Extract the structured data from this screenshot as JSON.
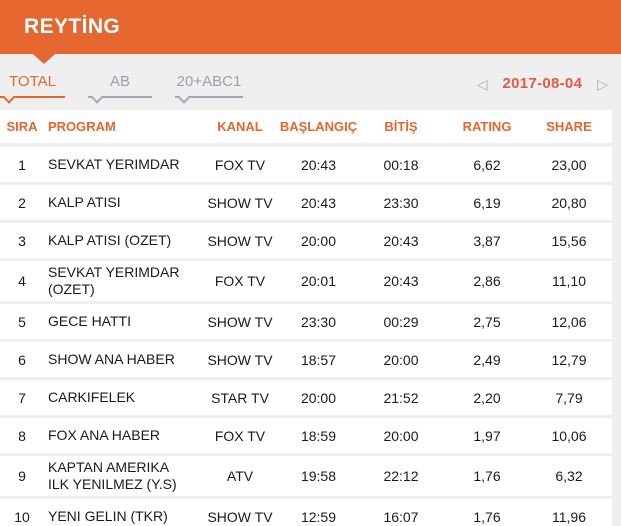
{
  "header": {
    "title": "REYTİNG"
  },
  "tabs": {
    "items": [
      {
        "label": "TOTAL",
        "active": true
      },
      {
        "label": "AB",
        "active": false
      },
      {
        "label": "20+ABC1",
        "active": false
      }
    ]
  },
  "date_nav": {
    "prev_icon": "◁",
    "date": "2017-08-04",
    "next_icon": "▷"
  },
  "table": {
    "columns": [
      "SIRA",
      "PROGRAM",
      "KANAL",
      "BAŞLANGIÇ",
      "BİTİŞ",
      "RATING",
      "SHARE"
    ],
    "column_keys": [
      "sira",
      "program",
      "kanal",
      "baslangic",
      "bitis",
      "rating",
      "share"
    ],
    "rows": [
      [
        "1",
        "SEVKAT YERIMDAR",
        "FOX TV",
        "20:43",
        "00:18",
        "6,62",
        "23,00"
      ],
      [
        "2",
        "KALP ATISI",
        "SHOW TV",
        "20:43",
        "23:30",
        "6,19",
        "20,80"
      ],
      [
        "3",
        "KALP ATISI (OZET)",
        "SHOW TV",
        "20:00",
        "20:43",
        "3,87",
        "15,56"
      ],
      [
        "4",
        "SEVKAT YERIMDAR (OZET)",
        "FOX TV",
        "20:01",
        "20:43",
        "2,86",
        "11,10"
      ],
      [
        "5",
        "GECE HATTI",
        "SHOW TV",
        "23:30",
        "00:29",
        "2,75",
        "12,06"
      ],
      [
        "6",
        "SHOW ANA HABER",
        "SHOW TV",
        "18:57",
        "20:00",
        "2,49",
        "12,79"
      ],
      [
        "7",
        "CARKIFELEK",
        "STAR TV",
        "20:00",
        "21:52",
        "2,20",
        "7,79"
      ],
      [
        "8",
        "FOX ANA HABER",
        "FOX TV",
        "18:59",
        "20:00",
        "1,97",
        "10,06"
      ],
      [
        "9",
        "KAPTAN AMERIKA ILK YENILMEZ (Y.S)",
        "ATV",
        "19:58",
        "22:12",
        "1,76",
        "6,32"
      ],
      [
        "10",
        "YENI GELIN (TKR)",
        "SHOW TV",
        "12:59",
        "16:07",
        "1,76",
        "11,96"
      ]
    ]
  },
  "colors": {
    "brand_orange": "#E5662E",
    "date_orange": "#E8573B",
    "inactive_gray": "#9BA1A8",
    "page_bg": "#EFEFEF",
    "row_bg": "#FFFFFF",
    "text": "#1A1A1A"
  }
}
